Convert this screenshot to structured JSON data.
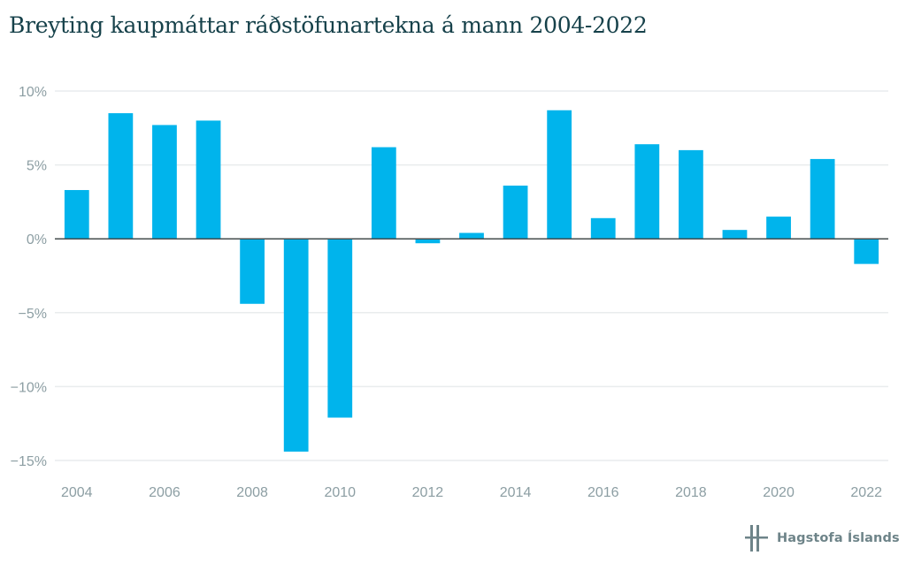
{
  "title": "Breyting kaupmáttar ráðstöfunartekna á mann 2004-2022",
  "logo_text": "Hagstofa Íslands",
  "colors": {
    "bar": "#00b4ec",
    "title": "#16414a",
    "tick": "#8c9ea3",
    "grid": "#e9eced",
    "zero_line": "#444c4e"
  },
  "chart_data": {
    "type": "bar",
    "title": "Breyting kaupmáttar ráðstöfunartekna á mann 2004-2022",
    "xlabel": "",
    "ylabel": "",
    "unit": "%",
    "categories": [
      "2004",
      "2005",
      "2006",
      "2007",
      "2008",
      "2009",
      "2010",
      "2011",
      "2012",
      "2013",
      "2014",
      "2015",
      "2016",
      "2017",
      "2018",
      "2019",
      "2020",
      "2021",
      "2022"
    ],
    "values": [
      3.3,
      8.5,
      7.7,
      8.0,
      -4.4,
      -14.4,
      -12.1,
      6.2,
      -0.3,
      0.4,
      3.6,
      8.7,
      1.4,
      6.4,
      6.0,
      0.6,
      1.5,
      5.4,
      -1.7
    ],
    "ylim": [
      -15,
      10
    ],
    "y_ticks": [
      10,
      5,
      0,
      -5,
      -10,
      -15
    ],
    "y_tick_labels": [
      "10%",
      "5%",
      "0%",
      "−5%",
      "−10%",
      "−15%"
    ],
    "x_tick_labels": [
      "2004",
      "2006",
      "2008",
      "2010",
      "2012",
      "2014",
      "2016",
      "2018",
      "2020",
      "2022"
    ],
    "grid": true,
    "legend": "none"
  }
}
